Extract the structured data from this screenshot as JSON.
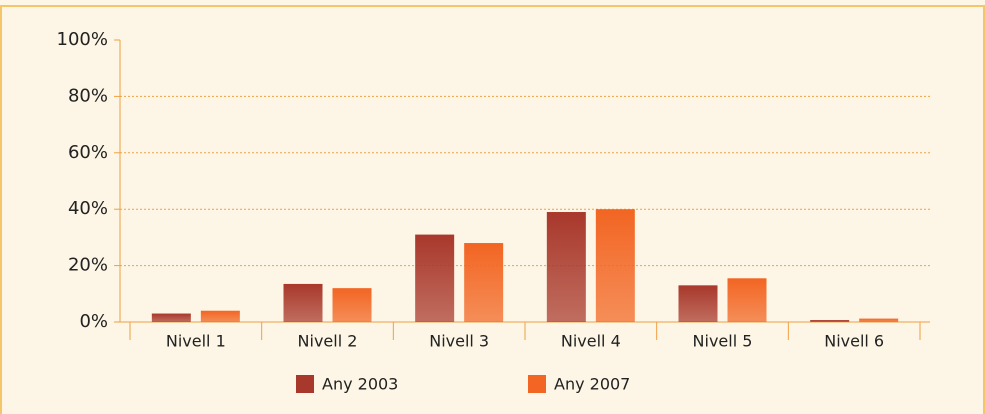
{
  "chart_data": {
    "type": "bar",
    "categories": [
      "Nivell 1",
      "Nivell 2",
      "Nivell 3",
      "Nivell 4",
      "Nivell 5",
      "Nivell 6"
    ],
    "series": [
      {
        "name": "Any 2003",
        "color": "#a8382b",
        "values": [
          3,
          13.5,
          31,
          39,
          13,
          0.7
        ]
      },
      {
        "name": "Any 2007",
        "color": "#f26522",
        "values": [
          4,
          12,
          28,
          40,
          15.5,
          1.2
        ]
      }
    ],
    "ylim": [
      0,
      100
    ],
    "yticks": [
      {
        "value": 0,
        "label": "0%"
      },
      {
        "value": 20,
        "label": "20%"
      },
      {
        "value": 40,
        "label": "40%"
      },
      {
        "value": 60,
        "label": "60%"
      },
      {
        "value": 80,
        "label": "80%"
      },
      {
        "value": 100,
        "label": "100%"
      }
    ],
    "grid": true
  }
}
